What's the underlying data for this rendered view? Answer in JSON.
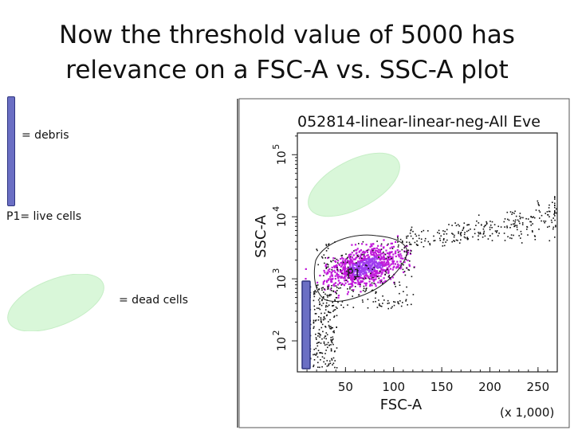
{
  "slide": {
    "title_line1": "Now the threshold value of 5000 has",
    "title_line2": "relevance on a FSC-A vs. SSC-A plot"
  },
  "legend": {
    "debris_label": "= debris",
    "live_label": "P1= live cells",
    "dead_label": "= dead cells"
  },
  "colors": {
    "debris": "#6b6fc4",
    "dead_cells_ellipse": "#d9f7d9",
    "p1_density": "#c01ad9",
    "p1_core": "#a03df0",
    "events": "#111111"
  },
  "chart_data": {
    "type": "scatter",
    "title": "052814-linear-linear-neg-All Eve",
    "xlabel": "FSC-A",
    "xunit": "(x 1,000)",
    "ylabel": "SSC-A",
    "xlim": [
      0,
      270
    ],
    "ylim_log10": [
      1.5,
      5.35
    ],
    "yscale": "log",
    "x_ticks": [
      "50",
      "100",
      "150",
      "200",
      "250"
    ],
    "y_ticks": [
      {
        "base": "10",
        "exp": "2"
      },
      {
        "base": "10",
        "exp": "3"
      },
      {
        "base": "10",
        "exp": "4"
      },
      {
        "base": "10",
        "exp": "5"
      }
    ],
    "gates": [
      {
        "name": "P1",
        "meaning": "live cells"
      }
    ],
    "threshold_fsc_a": 5000
  }
}
